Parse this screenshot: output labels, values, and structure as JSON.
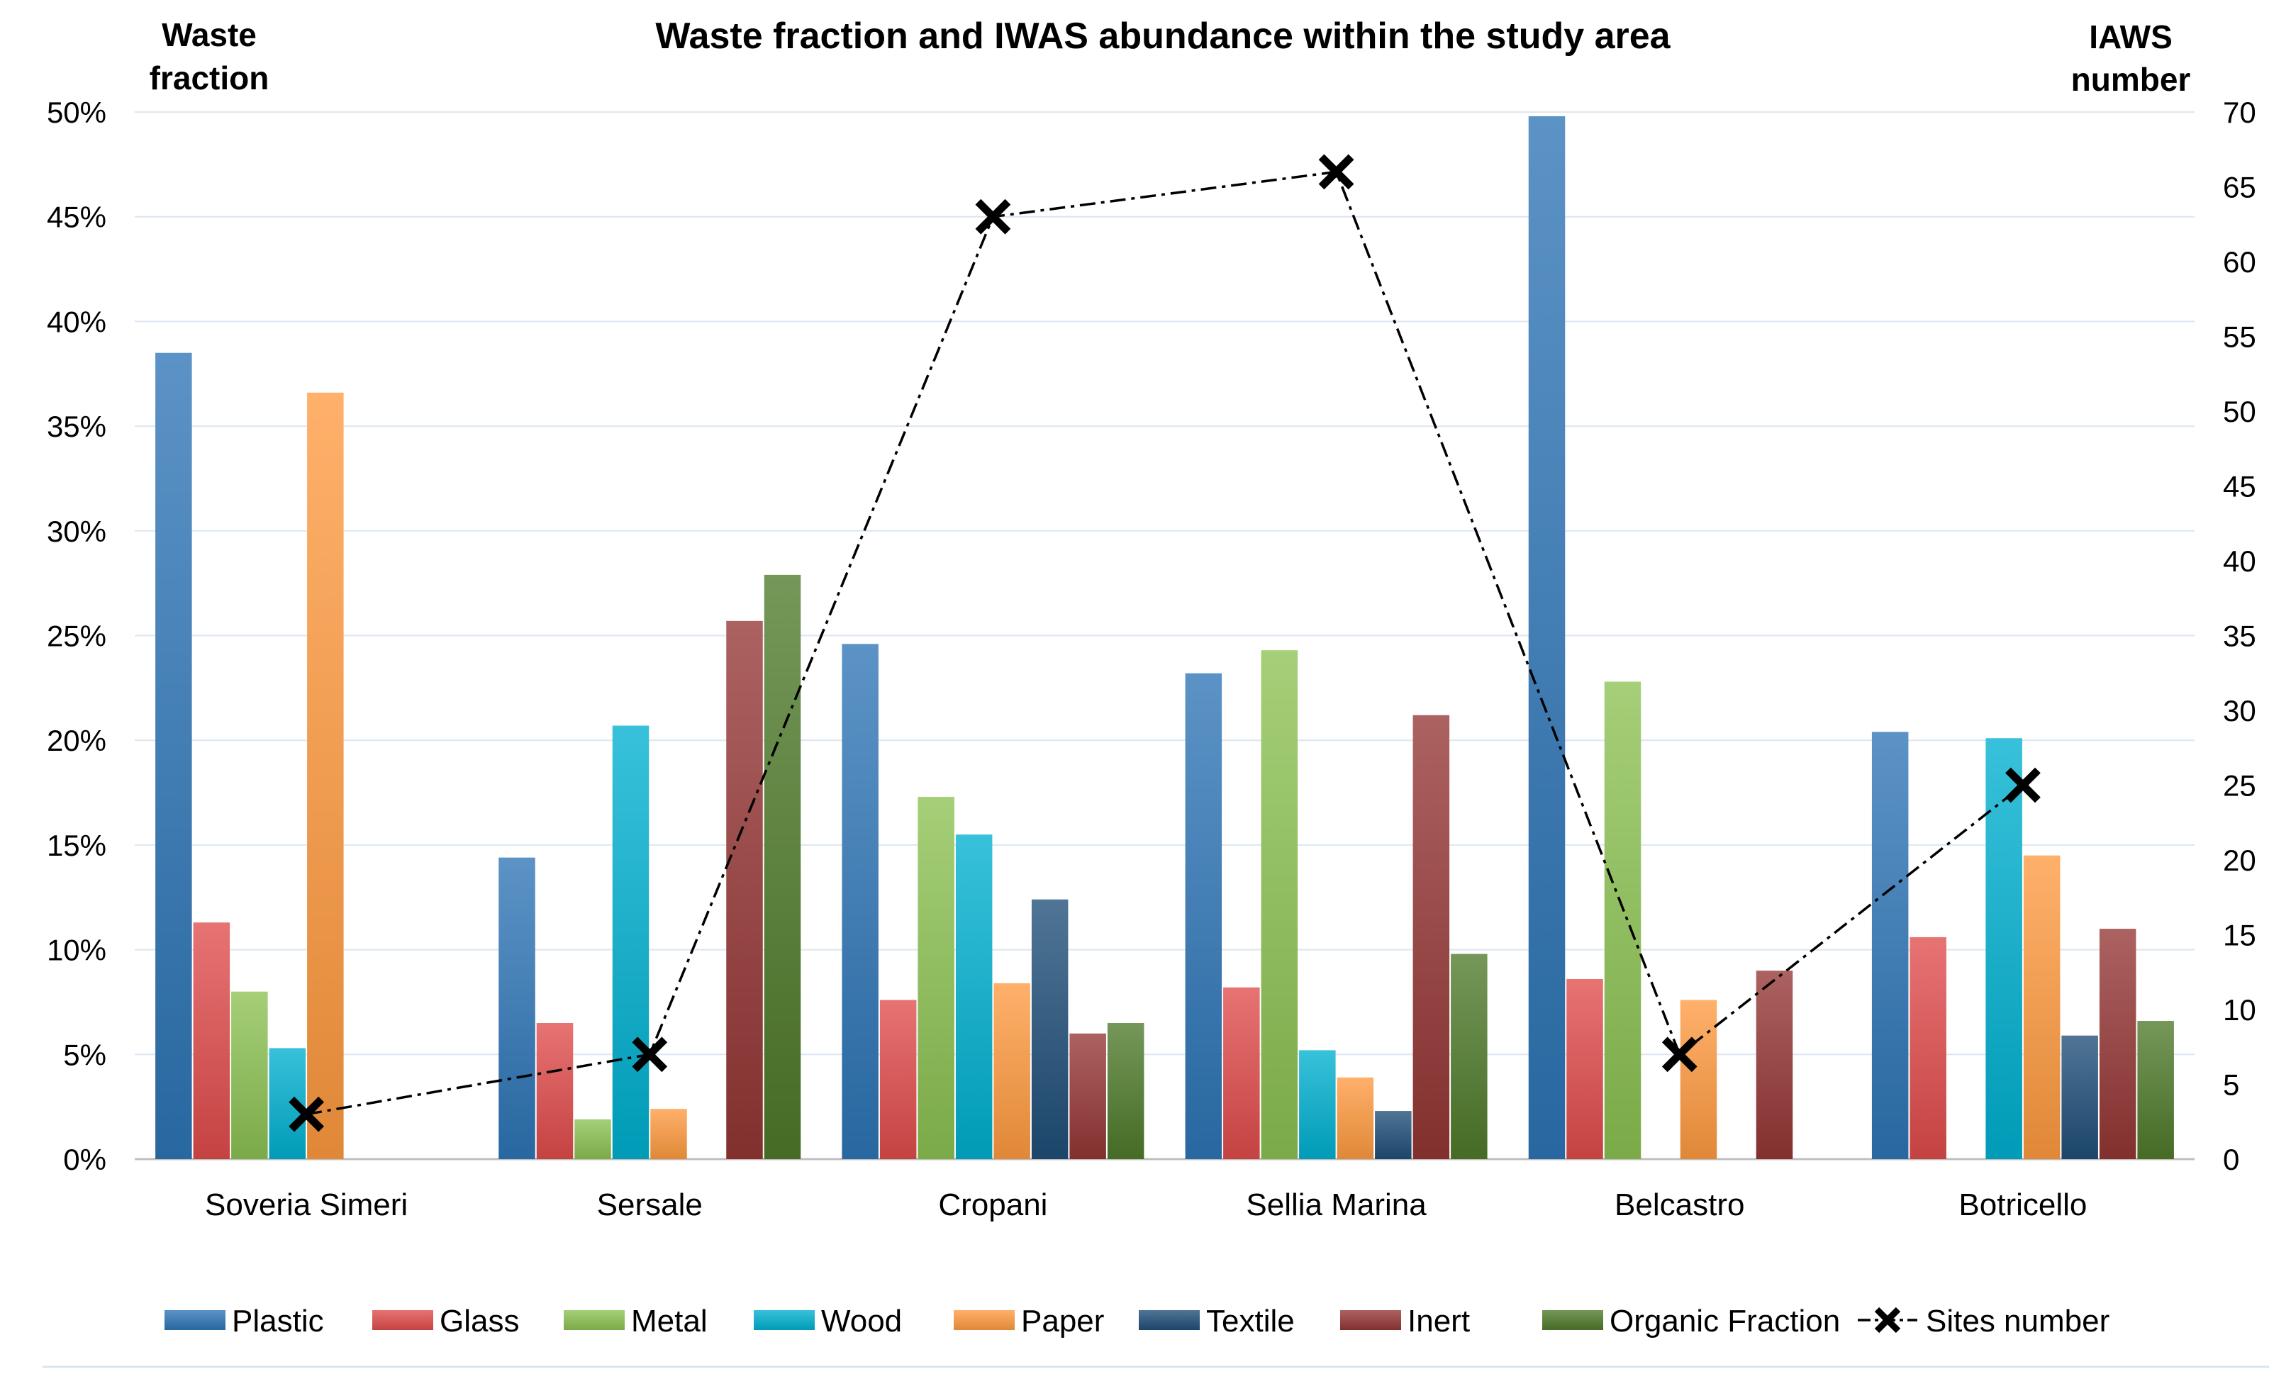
{
  "chart_data": {
    "type": "bar",
    "title": "Waste fraction and IWAS abundance within the study area",
    "y_left_label": [
      "Waste",
      "fraction"
    ],
    "y_right_label": [
      "IAWS",
      "number"
    ],
    "y_left_ticks": [
      "0%",
      "5%",
      "10%",
      "15%",
      "20%",
      "25%",
      "30%",
      "35%",
      "40%",
      "45%",
      "50%"
    ],
    "y_left_lim": [
      0,
      50
    ],
    "y_right_ticks": [
      "0",
      "5",
      "10",
      "15",
      "20",
      "25",
      "30",
      "35",
      "40",
      "45",
      "50",
      "55",
      "60",
      "65",
      "70"
    ],
    "y_right_lim": [
      0,
      70
    ],
    "grid": true,
    "legend_position": "bottom",
    "categories": [
      "Soveria Simeri",
      "Sersale",
      "Cropani",
      "Sellia Marina",
      "Belcastro",
      "Botricello"
    ],
    "series": [
      {
        "name": "Plastic",
        "color": "#2E75B6",
        "values": [
          38.5,
          14.4,
          24.6,
          23.2,
          49.8,
          20.4
        ]
      },
      {
        "name": "Glass",
        "color": "#E04B4B",
        "values": [
          11.3,
          6.5,
          7.6,
          8.2,
          8.6,
          10.6
        ]
      },
      {
        "name": "Metal",
        "color": "#8CC152",
        "values": [
          8.0,
          1.9,
          17.3,
          24.3,
          22.8,
          0
        ]
      },
      {
        "name": "Wood",
        "color": "#00B0D0",
        "values": [
          5.3,
          20.7,
          15.5,
          5.2,
          0,
          20.1
        ]
      },
      {
        "name": "Paper",
        "color": "#FF9A40",
        "values": [
          36.6,
          2.4,
          8.4,
          3.9,
          7.6,
          14.5
        ]
      },
      {
        "name": "Textile",
        "color": "#1F4E79",
        "values": [
          0,
          0,
          12.4,
          2.3,
          0,
          5.9
        ]
      },
      {
        "name": "Inert",
        "color": "#943634",
        "values": [
          0,
          25.7,
          6.0,
          21.2,
          9.0,
          11.0
        ]
      },
      {
        "name": "Organic Fraction",
        "color": "#4E7A2A",
        "values": [
          0,
          27.9,
          6.5,
          9.8,
          0,
          6.6
        ]
      }
    ],
    "line_series": {
      "name": "Sites number",
      "axis": "right",
      "values": [
        3,
        7,
        63,
        66,
        7,
        25
      ]
    }
  }
}
